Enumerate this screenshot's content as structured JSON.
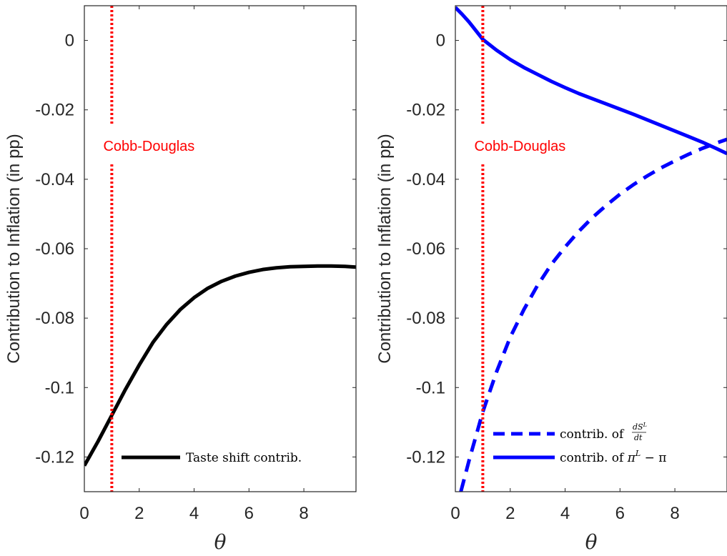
{
  "chart_data": [
    {
      "type": "line",
      "xlabel": "θ",
      "ylabel": "Contribution to Inflation (in pp)",
      "xlim": [
        0,
        9.9
      ],
      "ylim": [
        -0.13,
        0.01
      ],
      "xticks": [
        0,
        2,
        4,
        6,
        8
      ],
      "xtick_labels": [
        "0",
        "2",
        "4",
        "6",
        "8"
      ],
      "yticks": [
        0,
        -0.02,
        -0.04,
        -0.06,
        -0.08,
        -0.1,
        -0.12
      ],
      "ytick_labels": [
        "0",
        "-0.02",
        "-0.04",
        "-0.06",
        "-0.08",
        "-0.1",
        "-0.12"
      ],
      "grid": false,
      "legend_position": "bottom-right",
      "annotation": {
        "text": "Cobb-Douglas",
        "x": 1,
        "color": "#ff0000"
      },
      "vline": {
        "x": 1,
        "color": "#ff0000",
        "style": "dotted"
      },
      "series": [
        {
          "name": "Taste shift contrib.",
          "color": "#000000",
          "dash": "solid",
          "x": [
            0,
            0.5,
            1,
            1.5,
            2,
            2.5,
            3,
            3.5,
            4,
            4.5,
            5,
            5.5,
            6,
            6.5,
            7,
            7.5,
            8,
            8.5,
            9,
            9.5,
            9.9
          ],
          "y": [
            -0.1225,
            -0.1155,
            -0.108,
            -0.1005,
            -0.0935,
            -0.087,
            -0.0818,
            -0.0775,
            -0.0741,
            -0.0714,
            -0.0694,
            -0.0679,
            -0.0668,
            -0.066,
            -0.0655,
            -0.0652,
            -0.0651,
            -0.065,
            -0.065,
            -0.0651,
            -0.0653
          ]
        }
      ]
    },
    {
      "type": "line",
      "xlabel": "θ",
      "ylabel": "Contribution to Inflation (in pp)",
      "xlim": [
        0,
        9.9
      ],
      "ylim": [
        -0.13,
        0.01
      ],
      "xticks": [
        0,
        2,
        4,
        6,
        8
      ],
      "xtick_labels": [
        "0",
        "2",
        "4",
        "6",
        "8"
      ],
      "yticks": [
        0,
        -0.02,
        -0.04,
        -0.06,
        -0.08,
        -0.1,
        -0.12
      ],
      "ytick_labels": [
        "0",
        "-0.02",
        "-0.04",
        "-0.06",
        "-0.08",
        "-0.1",
        "-0.12"
      ],
      "grid": false,
      "legend_position": "bottom-right",
      "annotation": {
        "text": "Cobb-Douglas",
        "x": 1,
        "color": "#ff0000"
      },
      "vline": {
        "x": 1,
        "color": "#ff0000",
        "style": "dotted"
      },
      "series": [
        {
          "name": "contrib. of dS^L/dt",
          "color": "#0000ff",
          "dash": "dashed",
          "x": [
            0.2,
            0.5,
            1,
            1.5,
            2,
            2.5,
            3,
            3.5,
            4,
            4.5,
            5,
            5.5,
            6,
            6.5,
            7,
            7.5,
            8,
            8.5,
            9,
            9.5,
            9.9
          ],
          "y": [
            -0.13,
            -0.121,
            -0.107,
            -0.0955,
            -0.0855,
            -0.0775,
            -0.0705,
            -0.0645,
            -0.0595,
            -0.055,
            -0.051,
            -0.0475,
            -0.0443,
            -0.0415,
            -0.039,
            -0.0367,
            -0.0347,
            -0.0328,
            -0.0311,
            -0.0296,
            -0.0285
          ]
        },
        {
          "name": "contrib. of π^L − π",
          "color": "#0000ff",
          "dash": "solid",
          "x": [
            0,
            0.25,
            0.5,
            0.75,
            1,
            1.5,
            2,
            2.5,
            3,
            3.5,
            4,
            4.5,
            5,
            5.5,
            6,
            6.5,
            7,
            7.5,
            8,
            8.5,
            9,
            9.5,
            9.9
          ],
          "y": [
            0.0095,
            0.0075,
            0.0053,
            0.0028,
            0.0003,
            -0.0028,
            -0.0055,
            -0.0078,
            -0.0098,
            -0.0118,
            -0.0136,
            -0.0153,
            -0.0168,
            -0.0183,
            -0.0198,
            -0.0213,
            -0.0229,
            -0.0245,
            -0.0261,
            -0.0277,
            -0.0293,
            -0.0311,
            -0.0326
          ]
        }
      ]
    }
  ],
  "legend_math": {
    "prefix": "contrib. of",
    "frac_num_base": "dS",
    "frac_num_sup": "L",
    "frac_den": "dt",
    "pi": "π",
    "pi_sup": "L",
    "minus_pi": " − π"
  }
}
